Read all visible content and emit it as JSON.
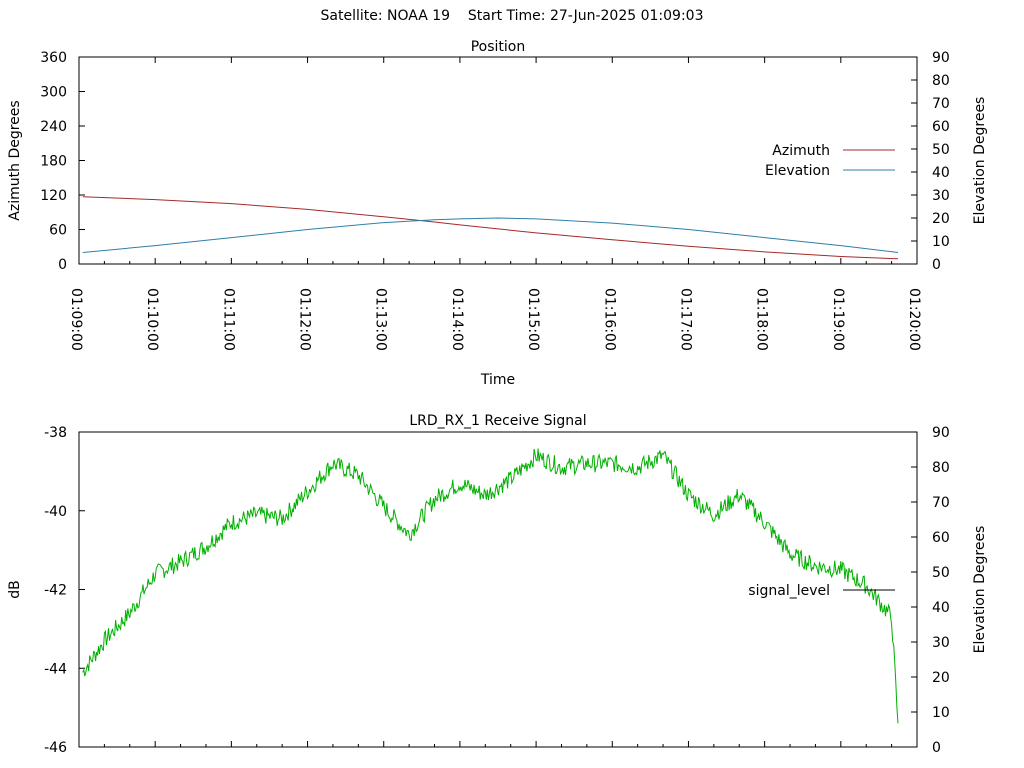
{
  "figure": {
    "title": "Satellite: NOAA 19    Start Time: 27-Jun-2025 01:09:03"
  },
  "colors": {
    "azimuth": "#a52a2a",
    "elevation": "#2f7fa8",
    "signal": "#00b000",
    "axes": "#000000"
  },
  "chart_data": [
    {
      "type": "line",
      "title": "Position",
      "xlabel": "Time",
      "ylabel": "Azimuth Degrees",
      "y2label": "Elevation Degrees",
      "x_ticks": [
        "01:09:00",
        "01:10:00",
        "01:11:00",
        "01:12:00",
        "01:13:00",
        "01:14:00",
        "01:15:00",
        "01:16:00",
        "01:17:00",
        "01:18:00",
        "01:19:00",
        "01:20:00"
      ],
      "y_ticks": [
        "0",
        "60",
        "120",
        "180",
        "240",
        "300",
        "360"
      ],
      "y2_ticks": [
        "0",
        "10",
        "20",
        "30",
        "40",
        "50",
        "60",
        "70",
        "80",
        "90"
      ],
      "xlim": [
        "01:09:00",
        "01:20:00"
      ],
      "ylim": [
        0,
        360
      ],
      "y2lim": [
        0,
        90
      ],
      "legend_position": "right",
      "x": [
        "01:09:03",
        "01:10:00",
        "01:11:00",
        "01:12:00",
        "01:13:00",
        "01:13:40",
        "01:14:00",
        "01:14:30",
        "01:15:00",
        "01:16:00",
        "01:17:00",
        "01:18:00",
        "01:19:00",
        "01:19:45"
      ],
      "series": [
        {
          "name": "Azimuth",
          "axis": "y",
          "values": [
            117,
            112,
            105,
            95,
            82,
            73,
            68,
            61,
            54,
            42,
            31,
            21,
            13,
            9
          ]
        },
        {
          "name": "Elevation",
          "axis": "y2",
          "values": [
            5,
            8,
            11.5,
            15,
            18,
            19.2,
            19.6,
            20,
            19.6,
            17.8,
            15,
            11.5,
            8,
            5
          ]
        }
      ]
    },
    {
      "type": "line",
      "title": "LRD_RX_1 Receive Signal",
      "ylabel": "dB",
      "y2label": "Elevation Degrees",
      "y_ticks": [
        "-38",
        "-40",
        "-42",
        "-44",
        "-46"
      ],
      "y2_ticks": [
        "0",
        "10",
        "20",
        "30",
        "40",
        "50",
        "60",
        "70",
        "80",
        "90"
      ],
      "ylim": [
        -46,
        -38
      ],
      "y2lim": [
        0,
        90
      ],
      "xlim": [
        "01:09:00",
        "01:20:00"
      ],
      "legend_position": "right",
      "x": [
        "01:09:03",
        "01:09:20",
        "01:09:40",
        "01:10:00",
        "01:10:20",
        "01:10:40",
        "01:11:00",
        "01:11:20",
        "01:11:40",
        "01:12:00",
        "01:12:20",
        "01:12:40",
        "01:13:00",
        "01:13:20",
        "01:13:40",
        "01:14:00",
        "01:14:20",
        "01:14:40",
        "01:15:00",
        "01:15:20",
        "01:15:40",
        "01:16:00",
        "01:16:20",
        "01:16:40",
        "01:17:00",
        "01:17:20",
        "01:17:40",
        "01:18:00",
        "01:18:20",
        "01:18:40",
        "01:19:00",
        "01:19:20",
        "01:19:40",
        "01:19:45"
      ],
      "series": [
        {
          "name": "signal_level",
          "axis": "y",
          "values": [
            -44.1,
            -43.3,
            -42.6,
            -41.6,
            -41.3,
            -40.9,
            -40.3,
            -40.1,
            -40.2,
            -39.5,
            -38.8,
            -39.1,
            -39.9,
            -40.6,
            -39.7,
            -39.3,
            -39.6,
            -39.2,
            -38.6,
            -38.9,
            -38.8,
            -38.8,
            -38.9,
            -38.6,
            -39.6,
            -40.1,
            -39.6,
            -40.3,
            -41.1,
            -41.4,
            -41.5,
            -41.9,
            -42.7,
            -45.4
          ]
        }
      ]
    }
  ]
}
